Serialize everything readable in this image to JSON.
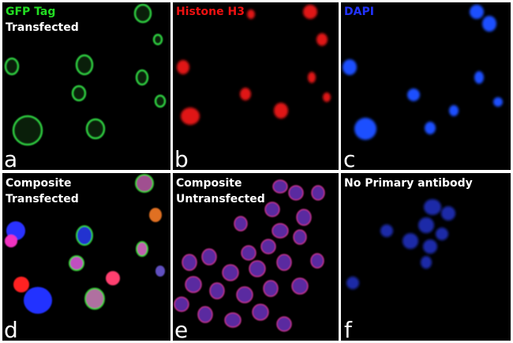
{
  "panels": [
    {
      "lines": [
        "GFP Tag",
        "Transfected"
      ],
      "letter": "a"
    },
    {
      "lines": [
        "Histone H3"
      ],
      "letter": "b"
    },
    {
      "lines": [
        "DAPI"
      ],
      "letter": "c"
    },
    {
      "lines": [
        "Composite",
        "Transfected"
      ],
      "letter": "d"
    },
    {
      "lines": [
        "Composite",
        "Untransfected"
      ],
      "letter": "e"
    },
    {
      "lines": [
        "No Primary antibody"
      ],
      "letter": "f"
    }
  ]
}
